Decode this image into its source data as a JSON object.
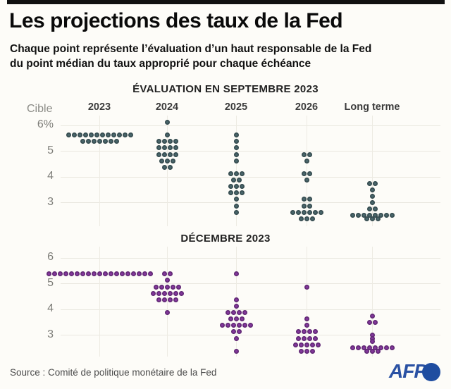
{
  "header": {
    "title": "Les projections des taux de la Fed",
    "subtitle_line1": "Chaque point représente l’évaluation d’un haut responsable de la Fed",
    "subtitle_line2": "du point médian du taux approprié pour chaque échéance"
  },
  "footer": {
    "source": "Source : Comité de politique monétaire de la Fed",
    "logo_text": "AFP"
  },
  "colors": {
    "sept_dot": "#48656a",
    "dec_dot": "#82379b",
    "logo_blue": "#2a51a3",
    "topbar": "#111111"
  },
  "chart_data": [
    {
      "type": "scatter",
      "title": "ÉVALUATION EN SEPTEMBRE 2023",
      "axis_label": "Cible",
      "dot_color": "#48656a",
      "categories": [
        "2023",
        "2024",
        "2025",
        "2026",
        "Long terme"
      ],
      "ytick_labels": [
        "6%",
        "5",
        "4",
        "3"
      ],
      "ytick_values": [
        6,
        5,
        4,
        3
      ],
      "ylim": [
        2.2,
        6.3
      ],
      "grid": true,
      "legend": "none",
      "series": [
        {
          "name": "2023",
          "rows": [
            [
              5.625,
              12
            ],
            [
              5.375,
              7
            ]
          ]
        },
        {
          "name": "2024",
          "rows": [
            [
              6.125,
              1
            ],
            [
              5.625,
              1
            ],
            [
              5.375,
              4
            ],
            [
              5.125,
              4
            ],
            [
              4.875,
              4
            ],
            [
              4.625,
              3
            ],
            [
              4.375,
              2
            ]
          ]
        },
        {
          "name": "2025",
          "rows": [
            [
              5.625,
              1
            ],
            [
              5.375,
              1
            ],
            [
              5.125,
              1
            ],
            [
              4.875,
              1
            ],
            [
              4.625,
              1
            ],
            [
              4.125,
              3
            ],
            [
              3.875,
              2
            ],
            [
              3.625,
              3
            ],
            [
              3.375,
              3
            ],
            [
              3.125,
              1
            ],
            [
              2.875,
              1
            ],
            [
              2.625,
              1
            ]
          ]
        },
        {
          "name": "2026",
          "rows": [
            [
              4.875,
              2
            ],
            [
              4.625,
              1
            ],
            [
              4.125,
              2
            ],
            [
              3.875,
              1
            ],
            [
              3.125,
              2
            ],
            [
              2.875,
              2
            ],
            [
              2.625,
              6
            ],
            [
              2.375,
              3
            ]
          ]
        },
        {
          "name": "Long terme",
          "rows": [
            [
              3.75,
              2
            ],
            [
              3.5,
              1
            ],
            [
              3.25,
              1
            ],
            [
              3.0,
              1
            ],
            [
              2.75,
              2
            ],
            [
              2.5,
              8
            ],
            [
              2.375,
              3
            ]
          ]
        }
      ]
    },
    {
      "type": "scatter",
      "title": "DÉCEMBRE 2023",
      "axis_label": "",
      "dot_color": "#82379b",
      "categories": [
        "2023",
        "2024",
        "2025",
        "2026",
        "Long terme"
      ],
      "ytick_labels": [
        "6",
        "5",
        "4",
        "3"
      ],
      "ytick_values": [
        6,
        5,
        4,
        3
      ],
      "ylim": [
        2.2,
        6.3
      ],
      "grid": true,
      "legend": "none",
      "series": [
        {
          "name": "2023",
          "rows": [
            [
              5.375,
              19
            ]
          ]
        },
        {
          "name": "2024",
          "rows": [
            [
              5.375,
              2
            ],
            [
              5.125,
              1
            ],
            [
              4.875,
              5
            ],
            [
              4.625,
              6
            ],
            [
              4.375,
              4
            ],
            [
              3.875,
              1
            ]
          ]
        },
        {
          "name": "2025",
          "rows": [
            [
              5.375,
              1
            ],
            [
              4.375,
              1
            ],
            [
              4.125,
              1
            ],
            [
              3.875,
              4
            ],
            [
              3.625,
              3
            ],
            [
              3.375,
              6
            ],
            [
              3.125,
              2
            ],
            [
              2.875,
              1
            ],
            [
              2.375,
              1
            ]
          ]
        },
        {
          "name": "2026",
          "rows": [
            [
              4.875,
              1
            ],
            [
              3.625,
              1
            ],
            [
              3.375,
              1
            ],
            [
              3.125,
              4
            ],
            [
              2.875,
              4
            ],
            [
              2.625,
              5
            ],
            [
              2.375,
              3
            ]
          ]
        },
        {
          "name": "Long terme",
          "rows": [
            [
              3.75,
              1
            ],
            [
              3.5,
              2
            ],
            [
              3.0,
              1
            ],
            [
              2.875,
              1
            ],
            [
              2.75,
              1
            ],
            [
              2.5,
              8
            ],
            [
              2.375,
              3
            ]
          ]
        }
      ]
    }
  ]
}
